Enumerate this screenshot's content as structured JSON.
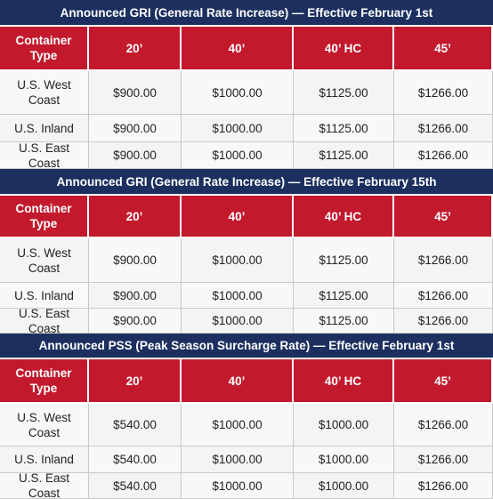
{
  "tables": [
    {
      "title": "Announced GRI  (General Rate Increase) — Effective February 1st",
      "header": [
        "Container Type",
        "20’",
        "40’",
        "40’ HC",
        "45’"
      ],
      "rows": [
        [
          "U.S. West Coast",
          "$900.00",
          "$1000.00",
          "$1125.00",
          "$1266.00"
        ],
        [
          "U.S. Inland",
          "$900.00",
          "$1000.00",
          "$1125.00",
          "$1266.00"
        ],
        [
          "U.S. East Coast",
          "$900.00",
          "$1000.00",
          "$1125.00",
          "$1266.00"
        ]
      ]
    },
    {
      "title": "Announced GRI  (General Rate Increase) — Effective February 15th",
      "header": [
        "Container Type",
        "20’",
        "40’",
        "40’ HC",
        "45’"
      ],
      "rows": [
        [
          "U.S. West Coast",
          "$900.00",
          "$1000.00",
          "$1125.00",
          "$1266.00"
        ],
        [
          "U.S. Inland",
          "$900.00",
          "$1000.00",
          "$1125.00",
          "$1266.00"
        ],
        [
          "U.S. East Coast",
          "$900.00",
          "$1000.00",
          "$1125.00",
          "$1266.00"
        ]
      ]
    },
    {
      "title": "Announced PSS  (Peak Season Surcharge Rate) — Effective February 1st",
      "header": [
        "Container Type",
        "20’",
        "40’",
        "40’ HC",
        "45’"
      ],
      "rows": [
        [
          "U.S. West Coast",
          "$540.00",
          "$1000.00",
          "$1000.00",
          "$1266.00"
        ],
        [
          "U.S. Inland",
          "$540.00",
          "$1000.00",
          "$1000.00",
          "$1266.00"
        ],
        [
          "U.S. East Coast",
          "$540.00",
          "$1000.00",
          "$1000.00",
          "$1266.00"
        ]
      ]
    }
  ]
}
